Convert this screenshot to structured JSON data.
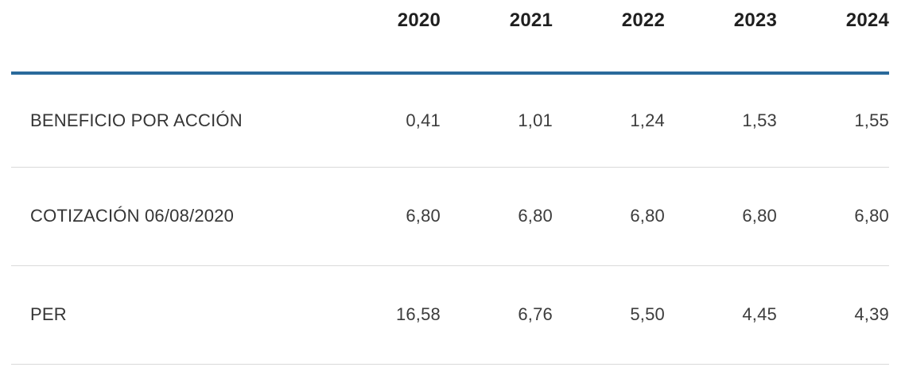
{
  "colors": {
    "accent": "#2a6a9b",
    "separator": "#d9d9d9",
    "header_text": "#1f1f1f",
    "body_text": "#3c3c3c"
  },
  "chart_data": {
    "type": "table",
    "title": "",
    "layout": {
      "header_rule": "thick blue bottom border under year header row",
      "row_separators": "thin light gray lines under each body row",
      "value_alignment": "right",
      "label_alignment": "left"
    },
    "columns": [
      "",
      "2020",
      "2021",
      "2022",
      "2023",
      "2024"
    ],
    "rows": [
      {
        "label": "BENEFICIO POR ACCIÓN",
        "values": [
          "0,41",
          "1,01",
          "1,24",
          "1,53",
          "1,55"
        ]
      },
      {
        "label": "COTIZACIÓN 06/08/2020",
        "values": [
          "6,80",
          "6,80",
          "6,80",
          "6,80",
          "6,80"
        ]
      },
      {
        "label": "PER",
        "values": [
          "16,58",
          "6,76",
          "5,50",
          "4,45",
          "4,39"
        ]
      }
    ],
    "numeric_rows": [
      {
        "label": "BENEFICIO POR ACCIÓN",
        "values": [
          0.41,
          1.01,
          1.24,
          1.53,
          1.55
        ]
      },
      {
        "label": "COTIZACIÓN 06/08/2020",
        "values": [
          6.8,
          6.8,
          6.8,
          6.8,
          6.8
        ]
      },
      {
        "label": "PER",
        "values": [
          16.58,
          6.76,
          5.5,
          4.45,
          4.39
        ]
      }
    ],
    "number_format": "es-ES decimal comma"
  }
}
